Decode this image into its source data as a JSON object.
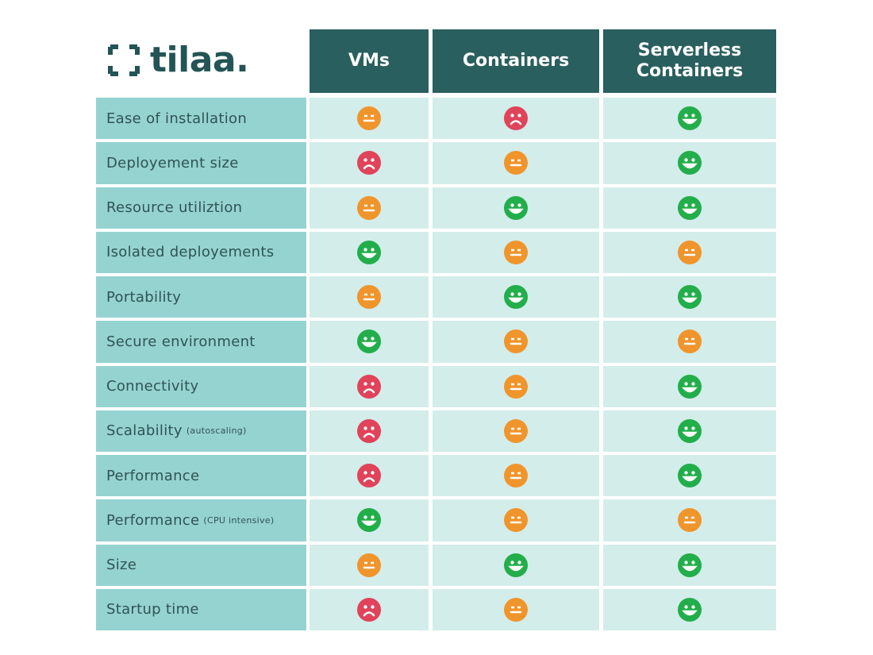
{
  "logo": "tilaa.",
  "table": {
    "columns": [
      "VMs",
      "Containers",
      "Serverless Containers"
    ],
    "rows": [
      {
        "label": "Ease of installation",
        "ratings": [
          "neutral",
          "bad",
          "good"
        ]
      },
      {
        "label": "Deployement size",
        "ratings": [
          "bad",
          "neutral",
          "good"
        ]
      },
      {
        "label": "Resource utiliztion",
        "ratings": [
          "neutral",
          "good",
          "good"
        ]
      },
      {
        "label": "Isolated deployements",
        "ratings": [
          "good",
          "neutral",
          "neutral"
        ]
      },
      {
        "label": "Portability",
        "ratings": [
          "neutral",
          "good",
          "good"
        ]
      },
      {
        "label": "Secure environment",
        "ratings": [
          "good",
          "neutral",
          "neutral"
        ]
      },
      {
        "label": "Connectivity",
        "ratings": [
          "bad",
          "neutral",
          "good"
        ]
      },
      {
        "label": "Scalability",
        "note": "(autoscaling)",
        "ratings": [
          "bad",
          "neutral",
          "good"
        ]
      },
      {
        "label": "Performance",
        "ratings": [
          "bad",
          "neutral",
          "good"
        ]
      },
      {
        "label": "Performance",
        "note": "(CPU intensive)",
        "ratings": [
          "good",
          "neutral",
          "neutral"
        ]
      },
      {
        "label": "Size",
        "ratings": [
          "neutral",
          "good",
          "good"
        ]
      },
      {
        "label": "Startup time",
        "ratings": [
          "bad",
          "neutral",
          "good"
        ]
      }
    ]
  }
}
